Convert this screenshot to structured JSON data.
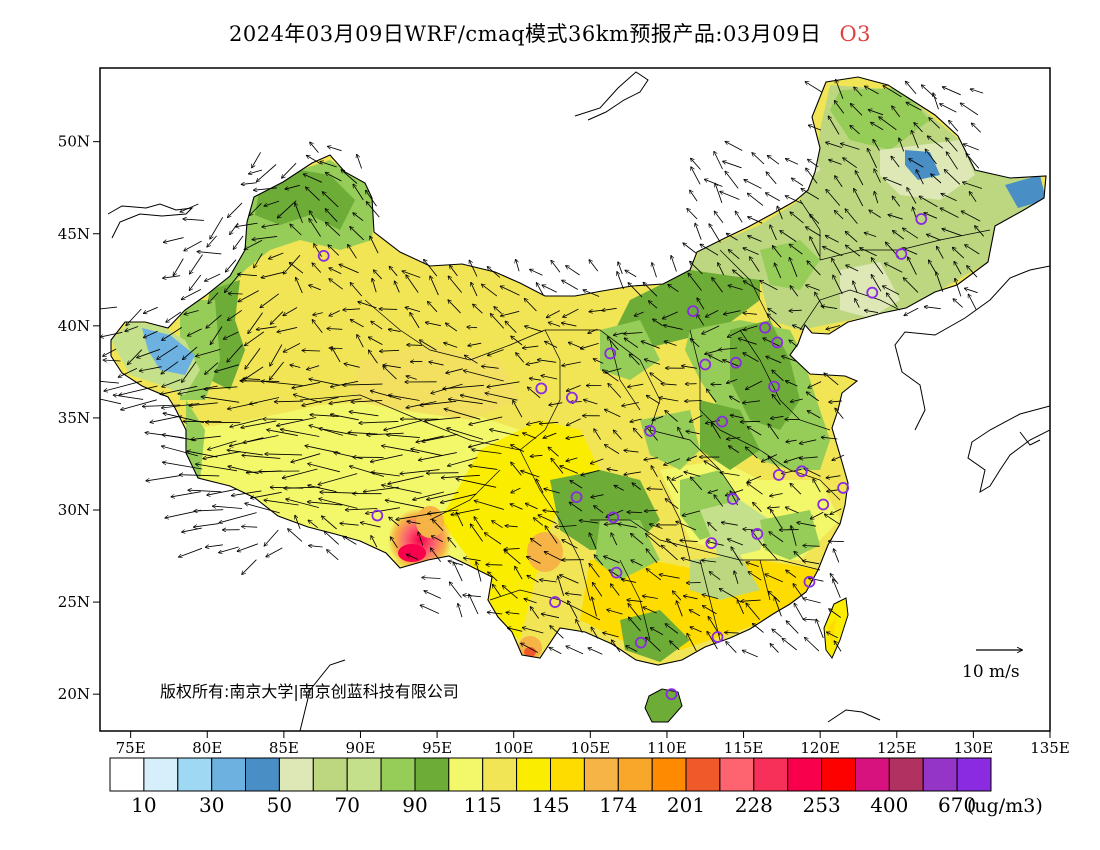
{
  "title": {
    "text": "2024年03月09日WRF/cmaq模式36km预报产品:03月09日",
    "species": "O3"
  },
  "map": {
    "lon_ticks": [
      "75E",
      "80E",
      "85E",
      "90E",
      "95E",
      "100E",
      "105E",
      "110E",
      "115E",
      "120E",
      "125E",
      "130E",
      "135E"
    ],
    "lat_ticks": [
      "20N",
      "25N",
      "30N",
      "35N",
      "40N",
      "45N",
      "50N"
    ],
    "lon_range": [
      73,
      135
    ],
    "lat_range": [
      18,
      54
    ],
    "copyright": "版权所有:南京大学|南京创蓝科技有限公司",
    "wind_reference": "10 m/s",
    "stations": [
      {
        "lon": 87.6,
        "lat": 43.8
      },
      {
        "lon": 91.1,
        "lat": 29.7
      },
      {
        "lon": 101.8,
        "lat": 36.6
      },
      {
        "lon": 103.8,
        "lat": 36.1
      },
      {
        "lon": 106.3,
        "lat": 38.5
      },
      {
        "lon": 111.7,
        "lat": 40.8
      },
      {
        "lon": 112.5,
        "lat": 37.9
      },
      {
        "lon": 114.5,
        "lat": 38.0
      },
      {
        "lon": 116.4,
        "lat": 39.9
      },
      {
        "lon": 117.2,
        "lat": 39.1
      },
      {
        "lon": 117.0,
        "lat": 36.7
      },
      {
        "lon": 113.6,
        "lat": 34.8
      },
      {
        "lon": 108.9,
        "lat": 34.3
      },
      {
        "lon": 104.1,
        "lat": 30.7
      },
      {
        "lon": 106.5,
        "lat": 29.6
      },
      {
        "lon": 106.7,
        "lat": 26.6
      },
      {
        "lon": 102.7,
        "lat": 25.0
      },
      {
        "lon": 108.3,
        "lat": 22.8
      },
      {
        "lon": 110.3,
        "lat": 20.0
      },
      {
        "lon": 113.3,
        "lat": 23.1
      },
      {
        "lon": 112.9,
        "lat": 28.2
      },
      {
        "lon": 114.3,
        "lat": 30.6
      },
      {
        "lon": 115.9,
        "lat": 28.7
      },
      {
        "lon": 117.3,
        "lat": 31.9
      },
      {
        "lon": 118.8,
        "lat": 32.1
      },
      {
        "lon": 120.2,
        "lat": 30.3
      },
      {
        "lon": 121.5,
        "lat": 31.2
      },
      {
        "lon": 119.3,
        "lat": 26.1
      },
      {
        "lon": 123.4,
        "lat": 41.8
      },
      {
        "lon": 125.3,
        "lat": 43.9
      },
      {
        "lon": 126.6,
        "lat": 45.8
      }
    ]
  },
  "legend": {
    "colors": [
      "#ffffff",
      "#d6effa",
      "#9ed8f3",
      "#6cb1df",
      "#4a8ec6",
      "#dde8b6",
      "#bcd77f",
      "#c5e08a",
      "#96cc58",
      "#6eac38",
      "#f3f76a",
      "#f1e556",
      "#fbed00",
      "#ffdc00",
      "#f7b446",
      "#f8a72a",
      "#fd8a00",
      "#f05a2a",
      "#fd6470",
      "#f7305a",
      "#f8004c",
      "#fd0000",
      "#d7127e",
      "#b13261",
      "#9535c8",
      "#8a2be2"
    ],
    "labels": [
      "10",
      "30",
      "50",
      "70",
      "90",
      "115",
      "145",
      "174",
      "201",
      "228",
      "253",
      "400",
      "670"
    ],
    "unit": "(ug/m3)"
  }
}
